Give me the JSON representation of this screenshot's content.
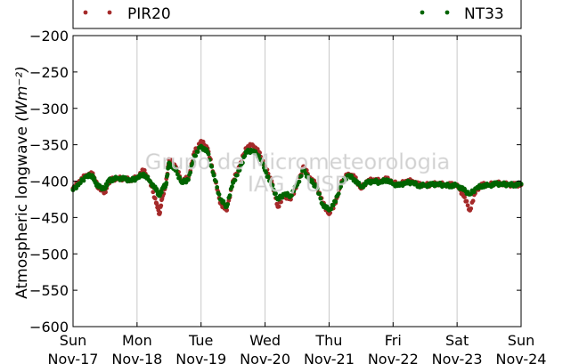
{
  "chart_data": {
    "type": "scatter",
    "ylabel": "Atmospheric longwave",
    "ylabel_unit": "(Wm⁻²)",
    "ylim": [
      -600,
      -200
    ],
    "yticks": [
      -600,
      -550,
      -500,
      -450,
      -400,
      -350,
      -300,
      -250,
      -200
    ],
    "ytick_labels": [
      "−600",
      "−550",
      "−500",
      "−450",
      "−400",
      "−350",
      "−300",
      "−250",
      "−200"
    ],
    "xlim": [
      0,
      7
    ],
    "xticks": [
      {
        "day": "Sun",
        "date": "Nov-17"
      },
      {
        "day": "Mon",
        "date": "Nov-18"
      },
      {
        "day": "Tue",
        "date": "Nov-19"
      },
      {
        "day": "Wed",
        "date": "Nov-20"
      },
      {
        "day": "Thu",
        "date": "Nov-21"
      },
      {
        "day": "Fri",
        "date": "Nov-22"
      },
      {
        "day": "Sat",
        "date": "Nov-23"
      },
      {
        "day": "Sun",
        "date": "Nov-24"
      }
    ],
    "grid": "vertical",
    "legend_placement": "top",
    "watermark": [
      "Grupo de Micrometeorologia",
      "IAG / USP"
    ],
    "series": [
      {
        "name": "PIR20",
        "color": "#a52a2a",
        "x": [
          0.0,
          0.1,
          0.2,
          0.3,
          0.35,
          0.4,
          0.5,
          0.55,
          0.6,
          0.7,
          0.8,
          0.9,
          1.0,
          1.1,
          1.2,
          1.3,
          1.35,
          1.4,
          1.45,
          1.5,
          1.6,
          1.7,
          1.8,
          1.9,
          2.0,
          2.1,
          2.2,
          2.3,
          2.4,
          2.5,
          2.6,
          2.7,
          2.8,
          2.9,
          3.0,
          3.1,
          3.2,
          3.3,
          3.4,
          3.5,
          3.6,
          3.7,
          3.8,
          3.9,
          4.0,
          4.1,
          4.2,
          4.3,
          4.4,
          4.5,
          4.6,
          4.7,
          4.8,
          4.9,
          5.0,
          5.1,
          5.2,
          5.3,
          5.4,
          5.5,
          5.6,
          5.7,
          5.8,
          5.9,
          6.0,
          6.1,
          6.2,
          6.3,
          6.4,
          6.5,
          6.6,
          6.7,
          6.8,
          6.9,
          7.0
        ],
        "y": [
          -410,
          -400,
          -392,
          -390,
          -400,
          -410,
          -415,
          -402,
          -398,
          -396,
          -397,
          -398,
          -395,
          -385,
          -400,
          -430,
          -445,
          -420,
          -405,
          -370,
          -380,
          -400,
          -395,
          -360,
          -345,
          -355,
          -390,
          -430,
          -440,
          -400,
          -380,
          -355,
          -350,
          -360,
          -380,
          -400,
          -435,
          -420,
          -425,
          -405,
          -380,
          -395,
          -405,
          -430,
          -445,
          -430,
          -400,
          -390,
          -395,
          -410,
          -400,
          -398,
          -400,
          -397,
          -402,
          -405,
          -400,
          -400,
          -405,
          -405,
          -405,
          -403,
          -405,
          -405,
          -405,
          -420,
          -440,
          -412,
          -405,
          -405,
          -403,
          -403,
          -405,
          -405,
          -405
        ]
      },
      {
        "name": "NT33",
        "color": "#006400",
        "x": [
          0.0,
          0.1,
          0.2,
          0.3,
          0.35,
          0.4,
          0.5,
          0.55,
          0.6,
          0.7,
          0.8,
          0.9,
          1.0,
          1.1,
          1.2,
          1.3,
          1.35,
          1.4,
          1.45,
          1.5,
          1.6,
          1.7,
          1.8,
          1.9,
          2.0,
          2.1,
          2.2,
          2.3,
          2.4,
          2.5,
          2.6,
          2.7,
          2.8,
          2.9,
          3.0,
          3.1,
          3.2,
          3.3,
          3.4,
          3.5,
          3.6,
          3.7,
          3.8,
          3.9,
          4.0,
          4.1,
          4.2,
          4.3,
          4.4,
          4.5,
          4.6,
          4.7,
          4.8,
          4.9,
          5.0,
          5.1,
          5.2,
          5.3,
          5.4,
          5.5,
          5.6,
          5.7,
          5.8,
          5.9,
          6.0,
          6.1,
          6.2,
          6.3,
          6.4,
          6.5,
          6.6,
          6.7,
          6.8,
          6.9,
          7.0
        ],
        "y": [
          -412,
          -403,
          -394,
          -392,
          -402,
          -408,
          -410,
          -400,
          -398,
          -396,
          -397,
          -399,
          -396,
          -390,
          -400,
          -412,
          -420,
          -410,
          -405,
          -375,
          -385,
          -402,
          -398,
          -365,
          -352,
          -360,
          -392,
          -425,
          -435,
          -402,
          -385,
          -360,
          -358,
          -365,
          -385,
          -405,
          -425,
          -418,
          -420,
          -405,
          -385,
          -398,
          -408,
          -432,
          -440,
          -428,
          -402,
          -392,
          -398,
          -408,
          -402,
          -400,
          -402,
          -398,
          -404,
          -406,
          -402,
          -402,
          -406,
          -406,
          -405,
          -404,
          -406,
          -406,
          -406,
          -412,
          -418,
          -410,
          -406,
          -406,
          -404,
          -404,
          -405,
          -405,
          -404
        ]
      }
    ]
  }
}
